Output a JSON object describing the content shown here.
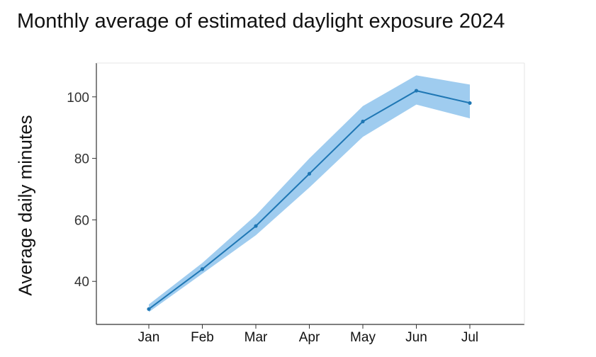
{
  "chart_data": {
    "type": "line",
    "title": "Monthly average of estimated daylight exposure 2024",
    "xlabel": "",
    "ylabel": "Average daily minutes",
    "categories": [
      "Jan",
      "Feb",
      "Mar",
      "Apr",
      "May",
      "Jun",
      "Jul"
    ],
    "series": [
      {
        "name": "Average daily minutes",
        "values": [
          31,
          44,
          58,
          75,
          92,
          102,
          98
        ],
        "lower": [
          30,
          42.5,
          55,
          70.5,
          87,
          97.5,
          93
        ],
        "upper": [
          32.5,
          46,
          61.5,
          80,
          97,
          107,
          104
        ]
      }
    ],
    "yticks": [
      40,
      60,
      80,
      100
    ],
    "ylim": [
      26,
      111
    ],
    "grid": false,
    "colors": {
      "line": "#1f77b4",
      "band": "#8ec3ec",
      "axis": "#333333"
    }
  }
}
